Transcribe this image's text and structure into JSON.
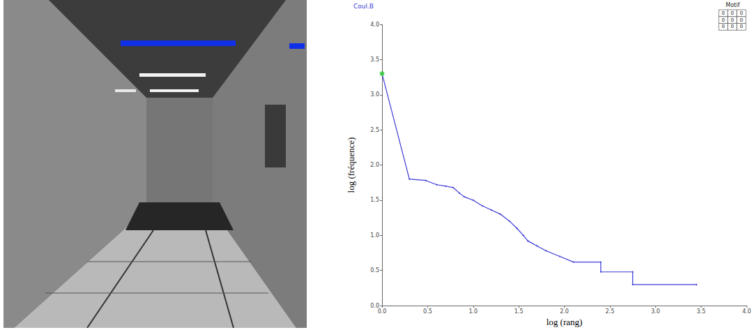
{
  "chart_data": {
    "type": "line",
    "title": "Coul.B",
    "x_label": "log (rang)",
    "y_label": "log (fréquence)",
    "xlim": [
      0,
      4
    ],
    "ylim": [
      0,
      4
    ],
    "xticks": [
      {
        "value": 0,
        "label": "0.0"
      },
      {
        "value": 0.5,
        "label": "0.5"
      },
      {
        "value": 1,
        "label": "1.0"
      },
      {
        "value": 1.5,
        "label": "1.5"
      },
      {
        "value": 2,
        "label": "2.0"
      },
      {
        "value": 2.5,
        "label": "2.5"
      },
      {
        "value": 3,
        "label": "3.0"
      },
      {
        "value": 3.5,
        "label": "3.5"
      },
      {
        "value": 4,
        "label": "4.0"
      }
    ],
    "yticks": [
      {
        "value": 0,
        "label": "0.0"
      },
      {
        "value": 0.5,
        "label": "0.5"
      },
      {
        "value": 1,
        "label": "1.0"
      },
      {
        "value": 1.5,
        "label": "1.5"
      },
      {
        "value": 2,
        "label": "2.0"
      },
      {
        "value": 2.5,
        "label": "2.5"
      },
      {
        "value": 3,
        "label": "3.0"
      },
      {
        "value": 3.5,
        "label": "3.5"
      },
      {
        "value": 4,
        "label": "4.0"
      }
    ],
    "grid": false,
    "series": [
      {
        "type": "line",
        "color": "#3a3ad6",
        "x": [
          0,
          0.3,
          0.48,
          0.6,
          0.7,
          0.78,
          0.85,
          0.9,
          1.0,
          1.1,
          1.2,
          1.3,
          1.4,
          1.48,
          1.55,
          1.6,
          1.7,
          1.8,
          1.95,
          2.1,
          2.4,
          2.4,
          2.75,
          2.75,
          3.45
        ],
        "values": [
          3.3,
          1.8,
          1.78,
          1.72,
          1.7,
          1.68,
          1.6,
          1.55,
          1.5,
          1.42,
          1.36,
          1.3,
          1.2,
          1.1,
          1.0,
          0.92,
          0.85,
          0.78,
          0.7,
          0.62,
          0.62,
          0.48,
          0.48,
          0.3,
          0.3
        ]
      },
      {
        "type": "scatter",
        "color": "#33cc33",
        "marker": "circle",
        "x": [
          0
        ],
        "values": [
          3.3
        ]
      }
    ],
    "motif": {
      "title": "Motif",
      "cells": [
        [
          0,
          0,
          0
        ],
        [
          0,
          0,
          0
        ],
        [
          0,
          0,
          0
        ]
      ]
    }
  }
}
